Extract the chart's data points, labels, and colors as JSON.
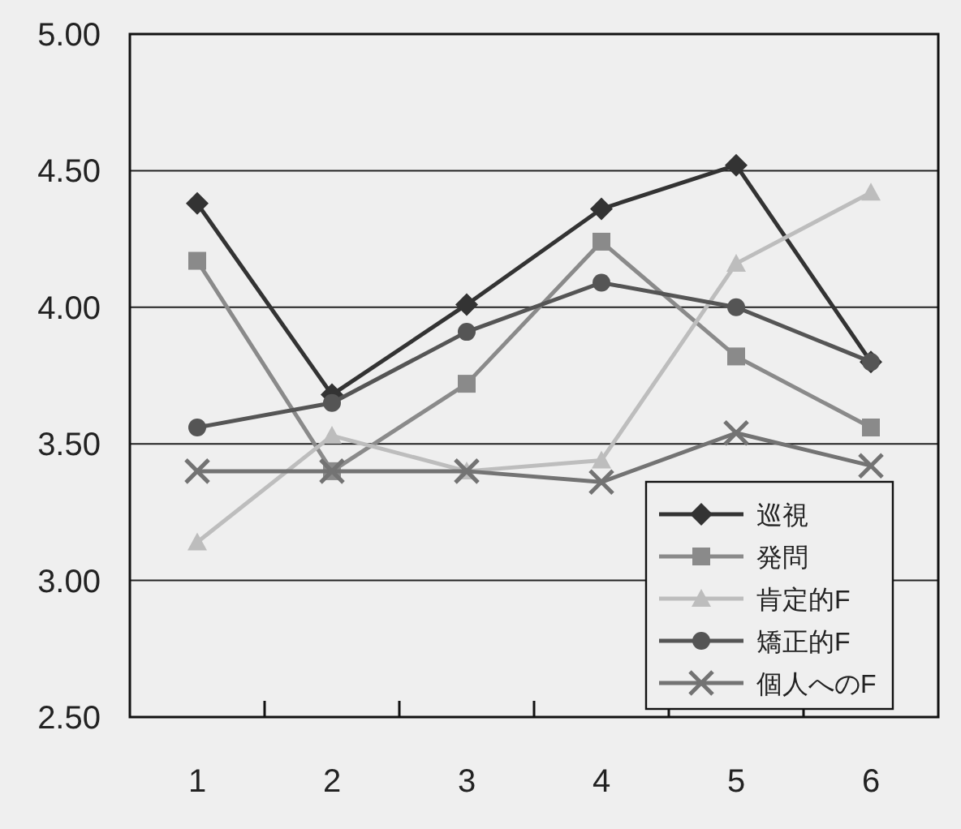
{
  "chart_data": {
    "type": "line",
    "categories": [
      "1",
      "2",
      "3",
      "4",
      "5",
      "6"
    ],
    "ylim": [
      2.5,
      5
    ],
    "yticks": [
      {
        "value": 2.5,
        "label": "2.50"
      },
      {
        "value": 3,
        "label": "3.00"
      },
      {
        "value": 3.5,
        "label": "3.50"
      },
      {
        "value": 4,
        "label": "4.00"
      },
      {
        "value": 4.5,
        "label": "4.50"
      },
      {
        "value": 5,
        "label": "5.00"
      }
    ],
    "grid": "y",
    "legend": "bottom right",
    "line_style": "solid",
    "series": [
      {
        "name": "巡視",
        "color": "#333333",
        "marker": "diamond",
        "values": [
          4.38,
          3.68,
          4.01,
          4.36,
          4.52,
          3.8
        ]
      },
      {
        "name": "発問",
        "color": "#8a8a8a",
        "marker": "square",
        "values": [
          4.17,
          3.4,
          3.72,
          4.24,
          3.82,
          3.56
        ]
      },
      {
        "name": "肯定的F",
        "color": "#bdbdbd",
        "marker": "triangle",
        "values": [
          3.14,
          3.53,
          3.4,
          3.44,
          4.16,
          4.42
        ]
      },
      {
        "name": "矯正的F",
        "color": "#555555",
        "marker": "circle",
        "values": [
          3.56,
          3.65,
          3.91,
          4.09,
          4.0,
          3.8
        ]
      },
      {
        "name": "個人へのF",
        "color": "#737373",
        "marker": "cross",
        "values": [
          3.4,
          3.4,
          3.4,
          3.36,
          3.54,
          3.42
        ]
      }
    ]
  }
}
